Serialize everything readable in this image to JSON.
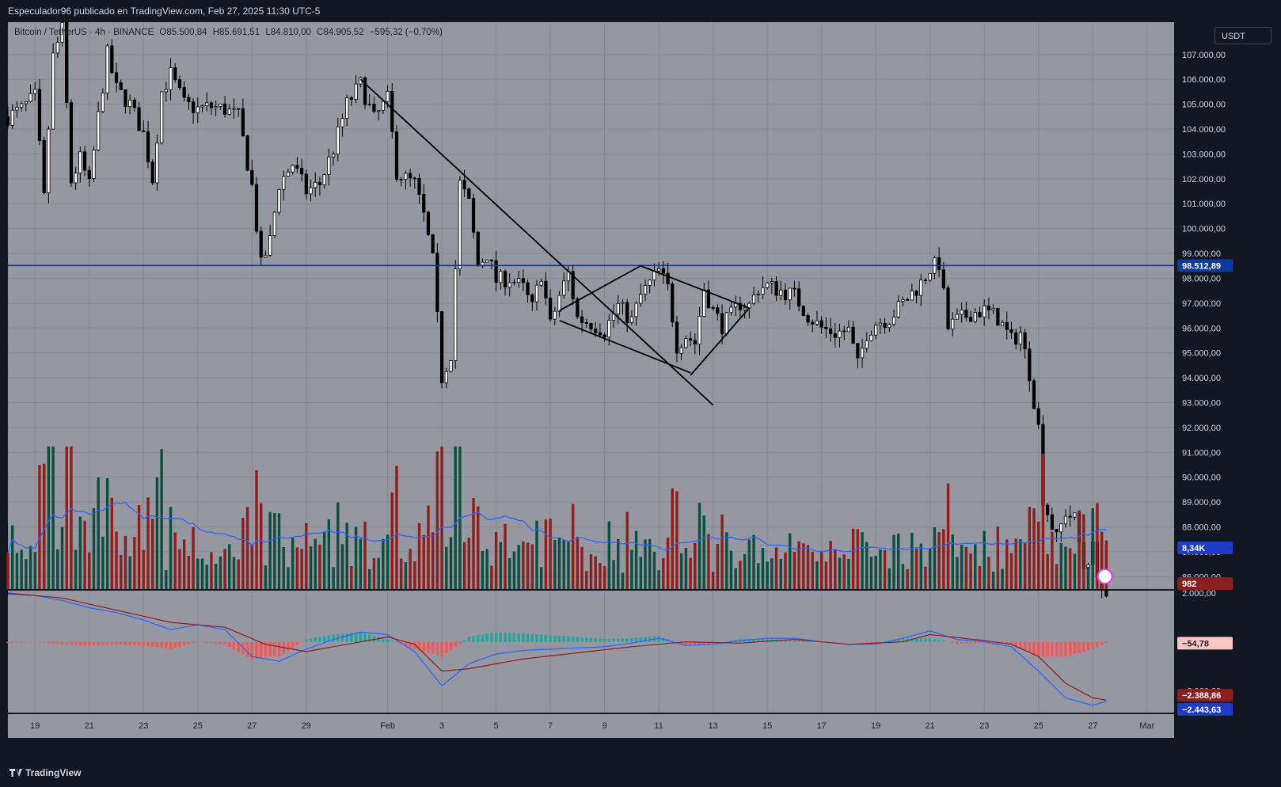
{
  "header": {
    "title": "Especulador96 publicado en TradingView.com, Feb 27, 2025 11:30 UTC-5"
  },
  "legend": {
    "symbol": "Bitcoin / TetherUS · 4h · BINANCE",
    "open": "O85.500,84",
    "high": "H85.691,51",
    "low": "L84.810,00",
    "close": "C84.905,52",
    "change": "−595,32 (−0,70%)"
  },
  "currency_button": "USDT",
  "footer": {
    "brand": "TradingView"
  },
  "colors": {
    "background": "#9598a1",
    "up": "#ffffff",
    "down": "#000000",
    "vol_up": "#0d4f3c",
    "vol_down": "#8e1e1e",
    "hline": "#0d3a9e",
    "vol_ma": "#2962ff",
    "macd": "#2962ff",
    "signal": "#8e1e1e",
    "hist_pos": "#26a69a",
    "hist_neg": "#ff5252"
  },
  "price_axis": {
    "ticks": [
      "107.000,00",
      "106.000,00",
      "105.000,00",
      "104.000,00",
      "103.000,00",
      "102.000,00",
      "101.000,00",
      "100.000,00",
      "99.000,00",
      "98.000,00",
      "97.000,00",
      "96.000,00",
      "95.000,00",
      "94.000,00",
      "93.000,00",
      "92.000,00",
      "91.000,00",
      "90.000,00",
      "89.000,00",
      "88.000,00",
      "87.000,00",
      "86.000,00"
    ]
  },
  "price_labels": {
    "hline_value": "98.512,89",
    "volume_ma": "8,34K",
    "volume": "982",
    "hist": "−54,78",
    "signal": "−2.388,86",
    "macd": "−2.443,63"
  },
  "macd_axis": {
    "ticks": [
      "2.000,00",
      "−2.000,00"
    ]
  },
  "time_axis": {
    "ticks": [
      "19",
      "21",
      "23",
      "25",
      "27",
      "29",
      "Feb",
      "3",
      "5",
      "7",
      "9",
      "11",
      "13",
      "15",
      "17",
      "19",
      "21",
      "23",
      "25",
      "27",
      "Mar"
    ]
  },
  "chart_data": {
    "type": "candlestick",
    "symbol": "Bitcoin / TetherUS",
    "interval": "4h",
    "x_range": [
      "2025-01-18",
      "2025-03-02"
    ],
    "y_range": [
      85500,
      108300
    ],
    "horizontal_line": 98512.89,
    "trendlines": [
      {
        "from": [
          "2025-01-31T00:00",
          106000
        ],
        "to": [
          "2025-02-13T00:00",
          92900
        ]
      },
      {
        "from": [
          "2025-02-07T08:00",
          96700
        ],
        "to": [
          "2025-02-10T08:00",
          98500
        ]
      },
      {
        "from": [
          "2025-02-07T08:00",
          96300
        ],
        "to": [
          "2025-02-12T04:00",
          94200
        ]
      },
      {
        "from": [
          "2025-02-10T08:00",
          98500
        ],
        "to": [
          "2025-02-14T08:00",
          96800
        ]
      },
      {
        "from": [
          "2025-02-12T04:00",
          94100
        ],
        "to": [
          "2025-02-14T08:00",
          96800
        ]
      }
    ],
    "path": [
      [
        "2025-01-18T00:00",
        104500
      ],
      [
        "2025-01-18T12:00",
        104800
      ],
      [
        "2025-01-19T00:00",
        105300
      ],
      [
        "2025-01-19T08:00",
        101200
      ],
      [
        "2025-01-19T16:00",
        106900
      ],
      [
        "2025-01-20T00:00",
        108000
      ],
      [
        "2025-01-20T08:00",
        101900
      ],
      [
        "2025-01-20T16:00",
        102800
      ],
      [
        "2025-01-21T00:00",
        101700
      ],
      [
        "2025-01-21T08:00",
        104500
      ],
      [
        "2025-01-21T16:00",
        107000
      ],
      [
        "2025-01-22T00:00",
        105600
      ],
      [
        "2025-01-22T12:00",
        105000
      ],
      [
        "2025-01-23T00:00",
        103800
      ],
      [
        "2025-01-23T08:00",
        102000
      ],
      [
        "2025-01-23T16:00",
        105500
      ],
      [
        "2025-01-24T00:00",
        106200
      ],
      [
        "2025-01-24T12:00",
        105000
      ],
      [
        "2025-01-25T00:00",
        104800
      ],
      [
        "2025-01-25T12:00",
        104900
      ],
      [
        "2025-01-26T00:00",
        104800
      ],
      [
        "2025-01-26T12:00",
        104500
      ],
      [
        "2025-01-27T00:00",
        101700
      ],
      [
        "2025-01-27T08:00",
        98500
      ],
      [
        "2025-01-27T16:00",
        99500
      ],
      [
        "2025-01-28T00:00",
        101800
      ],
      [
        "2025-01-28T12:00",
        102600
      ],
      [
        "2025-01-29T00:00",
        101500
      ],
      [
        "2025-01-29T12:00",
        101800
      ],
      [
        "2025-01-30T00:00",
        103200
      ],
      [
        "2025-01-30T12:00",
        105000
      ],
      [
        "2025-01-31T00:00",
        105800
      ],
      [
        "2025-01-31T12:00",
        104400
      ],
      [
        "2025-02-01T00:00",
        105200
      ],
      [
        "2025-02-01T08:00",
        102300
      ],
      [
        "2025-02-01T16:00",
        102000
      ],
      [
        "2025-02-02T00:00",
        101800
      ],
      [
        "2025-02-02T08:00",
        100500
      ],
      [
        "2025-02-02T16:00",
        98700
      ],
      [
        "2025-02-03T00:00",
        94000
      ],
      [
        "2025-02-03T08:00",
        95000
      ],
      [
        "2025-02-03T16:00",
        101800
      ],
      [
        "2025-02-04T00:00",
        101000
      ],
      [
        "2025-02-04T08:00",
        98500
      ],
      [
        "2025-02-04T16:00",
        99000
      ],
      [
        "2025-02-05T00:00",
        97900
      ],
      [
        "2025-02-05T12:00",
        98000
      ],
      [
        "2025-02-06T00:00",
        97600
      ],
      [
        "2025-02-06T08:00",
        96800
      ],
      [
        "2025-02-06T16:00",
        98200
      ],
      [
        "2025-02-07T00:00",
        96100
      ],
      [
        "2025-02-07T08:00",
        97300
      ],
      [
        "2025-02-07T16:00",
        98200
      ],
      [
        "2025-02-08T00:00",
        96400
      ],
      [
        "2025-02-08T12:00",
        96200
      ],
      [
        "2025-02-09T00:00",
        95900
      ],
      [
        "2025-02-09T12:00",
        96900
      ],
      [
        "2025-02-10T00:00",
        96300
      ],
      [
        "2025-02-10T08:00",
        97300
      ],
      [
        "2025-02-10T16:00",
        97800
      ],
      [
        "2025-02-11T00:00",
        98300
      ],
      [
        "2025-02-11T08:00",
        97600
      ],
      [
        "2025-02-11T16:00",
        95300
      ],
      [
        "2025-02-12T00:00",
        95700
      ],
      [
        "2025-02-12T08:00",
        95400
      ],
      [
        "2025-02-12T16:00",
        97600
      ],
      [
        "2025-02-13T00:00",
        96700
      ],
      [
        "2025-02-13T08:00",
        96100
      ],
      [
        "2025-02-13T16:00",
        96500
      ],
      [
        "2025-02-14T00:00",
        97000
      ],
      [
        "2025-02-14T08:00",
        96900
      ],
      [
        "2025-02-14T16:00",
        97600
      ],
      [
        "2025-02-15T00:00",
        97700
      ],
      [
        "2025-02-15T12:00",
        97500
      ],
      [
        "2025-02-16T00:00",
        97300
      ],
      [
        "2025-02-16T12:00",
        96500
      ],
      [
        "2025-02-17T00:00",
        96000
      ],
      [
        "2025-02-17T12:00",
        95800
      ],
      [
        "2025-02-18T00:00",
        95900
      ],
      [
        "2025-02-18T08:00",
        94500
      ],
      [
        "2025-02-18T16:00",
        95800
      ],
      [
        "2025-02-19T00:00",
        96200
      ],
      [
        "2025-02-19T12:00",
        96400
      ],
      [
        "2025-02-20T00:00",
        97000
      ],
      [
        "2025-02-20T08:00",
        97400
      ],
      [
        "2025-02-20T16:00",
        97800
      ],
      [
        "2025-02-21T00:00",
        98400
      ],
      [
        "2025-02-21T08:00",
        98600
      ],
      [
        "2025-02-21T16:00",
        96000
      ],
      [
        "2025-02-22T00:00",
        96300
      ],
      [
        "2025-02-22T12:00",
        96600
      ],
      [
        "2025-02-23T00:00",
        96700
      ],
      [
        "2025-02-23T12:00",
        96400
      ],
      [
        "2025-02-24T00:00",
        95500
      ],
      [
        "2025-02-24T08:00",
        95800
      ],
      [
        "2025-02-24T16:00",
        94200
      ],
      [
        "2025-02-25T00:00",
        92000
      ],
      [
        "2025-02-25T04:00",
        89200
      ],
      [
        "2025-02-25T08:00",
        88600
      ],
      [
        "2025-02-25T16:00",
        87500
      ],
      [
        "2025-02-26T00:00",
        88600
      ],
      [
        "2025-02-26T08:00",
        88300
      ],
      [
        "2025-02-26T16:00",
        86400
      ],
      [
        "2025-02-27T00:00",
        87100
      ],
      [
        "2025-02-27T08:00",
        85500
      ],
      [
        "2025-02-27T12:00",
        84900
      ]
    ],
    "volume_spikes": [
      [
        "2025-01-20T04:00",
        1
      ],
      [
        "2025-02-03T00:00",
        1
      ],
      [
        "2025-02-25T04:00",
        0.95
      ]
    ],
    "macd_path": [
      [
        "2025-01-18T00:00",
        1950
      ],
      [
        "2025-01-19T00:00",
        1900
      ],
      [
        "2025-01-20T00:00",
        1700
      ],
      [
        "2025-01-21T00:00",
        1400
      ],
      [
        "2025-01-22T00:00",
        1200
      ],
      [
        "2025-01-23T00:00",
        900
      ],
      [
        "2025-01-24T00:00",
        500
      ],
      [
        "2025-01-25T00:00",
        700
      ],
      [
        "2025-01-26T00:00",
        500
      ],
      [
        "2025-01-27T00:00",
        -600
      ],
      [
        "2025-01-28T00:00",
        -800
      ],
      [
        "2025-01-29T00:00",
        -300
      ],
      [
        "2025-01-30T00:00",
        100
      ],
      [
        "2025-01-31T00:00",
        400
      ],
      [
        "2025-02-01T00:00",
        300
      ],
      [
        "2025-02-02T00:00",
        -400
      ],
      [
        "2025-02-03T00:00",
        -1800
      ],
      [
        "2025-02-04T00:00",
        -900
      ],
      [
        "2025-02-05T00:00",
        -500
      ],
      [
        "2025-02-06T00:00",
        -350
      ],
      [
        "2025-02-07T00:00",
        -300
      ],
      [
        "2025-02-08T00:00",
        -250
      ],
      [
        "2025-02-09T00:00",
        -200
      ],
      [
        "2025-02-10T00:00",
        -50
      ],
      [
        "2025-02-11T00:00",
        150
      ],
      [
        "2025-02-12T00:00",
        -150
      ],
      [
        "2025-02-13T00:00",
        -100
      ],
      [
        "2025-02-14T00:00",
        50
      ],
      [
        "2025-02-15T00:00",
        150
      ],
      [
        "2025-02-16T00:00",
        150
      ],
      [
        "2025-02-17T00:00",
        0
      ],
      [
        "2025-02-18T00:00",
        -100
      ],
      [
        "2025-02-19T00:00",
        -100
      ],
      [
        "2025-02-20T00:00",
        150
      ],
      [
        "2025-02-21T00:00",
        450
      ],
      [
        "2025-02-22T00:00",
        100
      ],
      [
        "2025-02-23T00:00",
        0
      ],
      [
        "2025-02-24T00:00",
        -200
      ],
      [
        "2025-02-25T00:00",
        -1200
      ],
      [
        "2025-02-26T00:00",
        -2300
      ],
      [
        "2025-02-27T00:00",
        -2600
      ],
      [
        "2025-02-27T12:00",
        -2443
      ]
    ],
    "signal_path": [
      [
        "2025-01-18T00:00",
        2000
      ],
      [
        "2025-01-20T00:00",
        1800
      ],
      [
        "2025-01-22T00:00",
        1300
      ],
      [
        "2025-01-24T00:00",
        800
      ],
      [
        "2025-01-26T00:00",
        600
      ],
      [
        "2025-01-27T12:00",
        -100
      ],
      [
        "2025-01-29T00:00",
        -400
      ],
      [
        "2025-01-31T00:00",
        0
      ],
      [
        "2025-02-01T00:00",
        200
      ],
      [
        "2025-02-02T00:00",
        -100
      ],
      [
        "2025-02-03T00:00",
        -1200
      ],
      [
        "2025-02-04T00:00",
        -1100
      ],
      [
        "2025-02-06T00:00",
        -700
      ],
      [
        "2025-02-08T00:00",
        -450
      ],
      [
        "2025-02-10T00:00",
        -200
      ],
      [
        "2025-02-12T00:00",
        0
      ],
      [
        "2025-02-14T00:00",
        -50
      ],
      [
        "2025-02-16T00:00",
        100
      ],
      [
        "2025-02-18T00:00",
        -100
      ],
      [
        "2025-02-20T00:00",
        0
      ],
      [
        "2025-02-21T00:00",
        300
      ],
      [
        "2025-02-23T00:00",
        50
      ],
      [
        "2025-02-24T00:00",
        -100
      ],
      [
        "2025-02-25T00:00",
        -600
      ],
      [
        "2025-02-26T00:00",
        -1700
      ],
      [
        "2025-02-27T00:00",
        -2300
      ],
      [
        "2025-02-27T12:00",
        -2388
      ]
    ],
    "macd_range": [
      -2900,
      2100
    ]
  }
}
